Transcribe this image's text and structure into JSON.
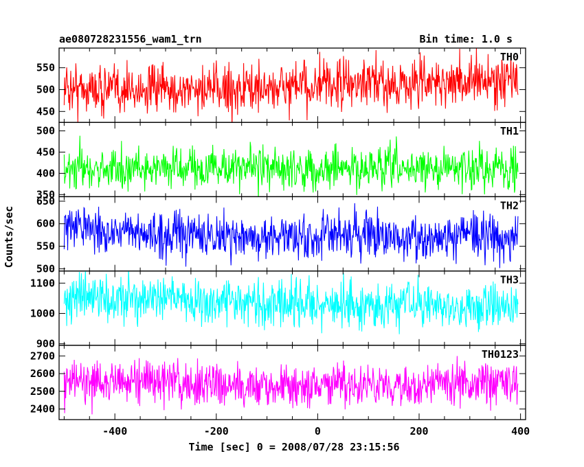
{
  "chart_data": {
    "type": "line",
    "title": "ae080728231556_wam1_trn",
    "subtitle": "Bin time: 1.0 s",
    "xlabel": "Time [sec] 0 = 2008/07/28 23:15:56",
    "ylabel": "Counts/sec",
    "xlim": [
      -510,
      410
    ],
    "xticks": [
      -400,
      -200,
      0,
      200,
      400
    ],
    "x_step": 1,
    "grid": false,
    "panels": [
      {
        "name": "TH0",
        "color": "#ff0000",
        "ylim": [
          425,
          595
        ],
        "yticks": [
          450,
          500,
          550
        ],
        "x": [
          -500,
          -400,
          -300,
          -200,
          -100,
          0,
          100,
          200,
          300,
          395
        ],
        "y": [
          505,
          500,
          498,
          500,
          503,
          508,
          512,
          515,
          520,
          522
        ],
        "noise": 28
      },
      {
        "name": "TH1",
        "color": "#00ff00",
        "ylim": [
          345,
          520
        ],
        "yticks": [
          350,
          400,
          450,
          500
        ],
        "x": [
          -500,
          -400,
          -300,
          -200,
          -100,
          0,
          100,
          200,
          300,
          395
        ],
        "y": [
          410,
          412,
          413,
          413,
          412,
          410,
          410,
          411,
          413,
          415
        ],
        "noise": 24
      },
      {
        "name": "TH2",
        "color": "#0000ff",
        "ylim": [
          495,
          660
        ],
        "yticks": [
          500,
          550,
          600,
          650
        ],
        "x": [
          -500,
          -450,
          -400,
          -300,
          -200,
          -100,
          0,
          100,
          200,
          300,
          395
        ],
        "y": [
          590,
          598,
          578,
          575,
          573,
          572,
          568,
          575,
          568,
          575,
          570
        ],
        "noise": 25
      },
      {
        "name": "TH3",
        "color": "#00ffff",
        "ylim": [
          895,
          1140
        ],
        "yticks": [
          900,
          1000,
          1100
        ],
        "x": [
          -500,
          -400,
          -300,
          -200,
          -100,
          0,
          100,
          200,
          300,
          395
        ],
        "y": [
          1055,
          1050,
          1045,
          1040,
          1035,
          1030,
          1025,
          1025,
          1028,
          1030
        ],
        "noise": 38
      },
      {
        "name": "TH0123",
        "color": "#ff00ff",
        "ylim": [
          2340,
          2760
        ],
        "yticks": [
          2400,
          2500,
          2600,
          2700
        ],
        "x": [
          -500,
          -400,
          -300,
          -200,
          -100,
          0,
          100,
          200,
          300,
          395
        ],
        "y": [
          2560,
          2555,
          2550,
          2545,
          2535,
          2525,
          2525,
          2535,
          2550,
          2560
        ],
        "noise": 62
      }
    ]
  }
}
